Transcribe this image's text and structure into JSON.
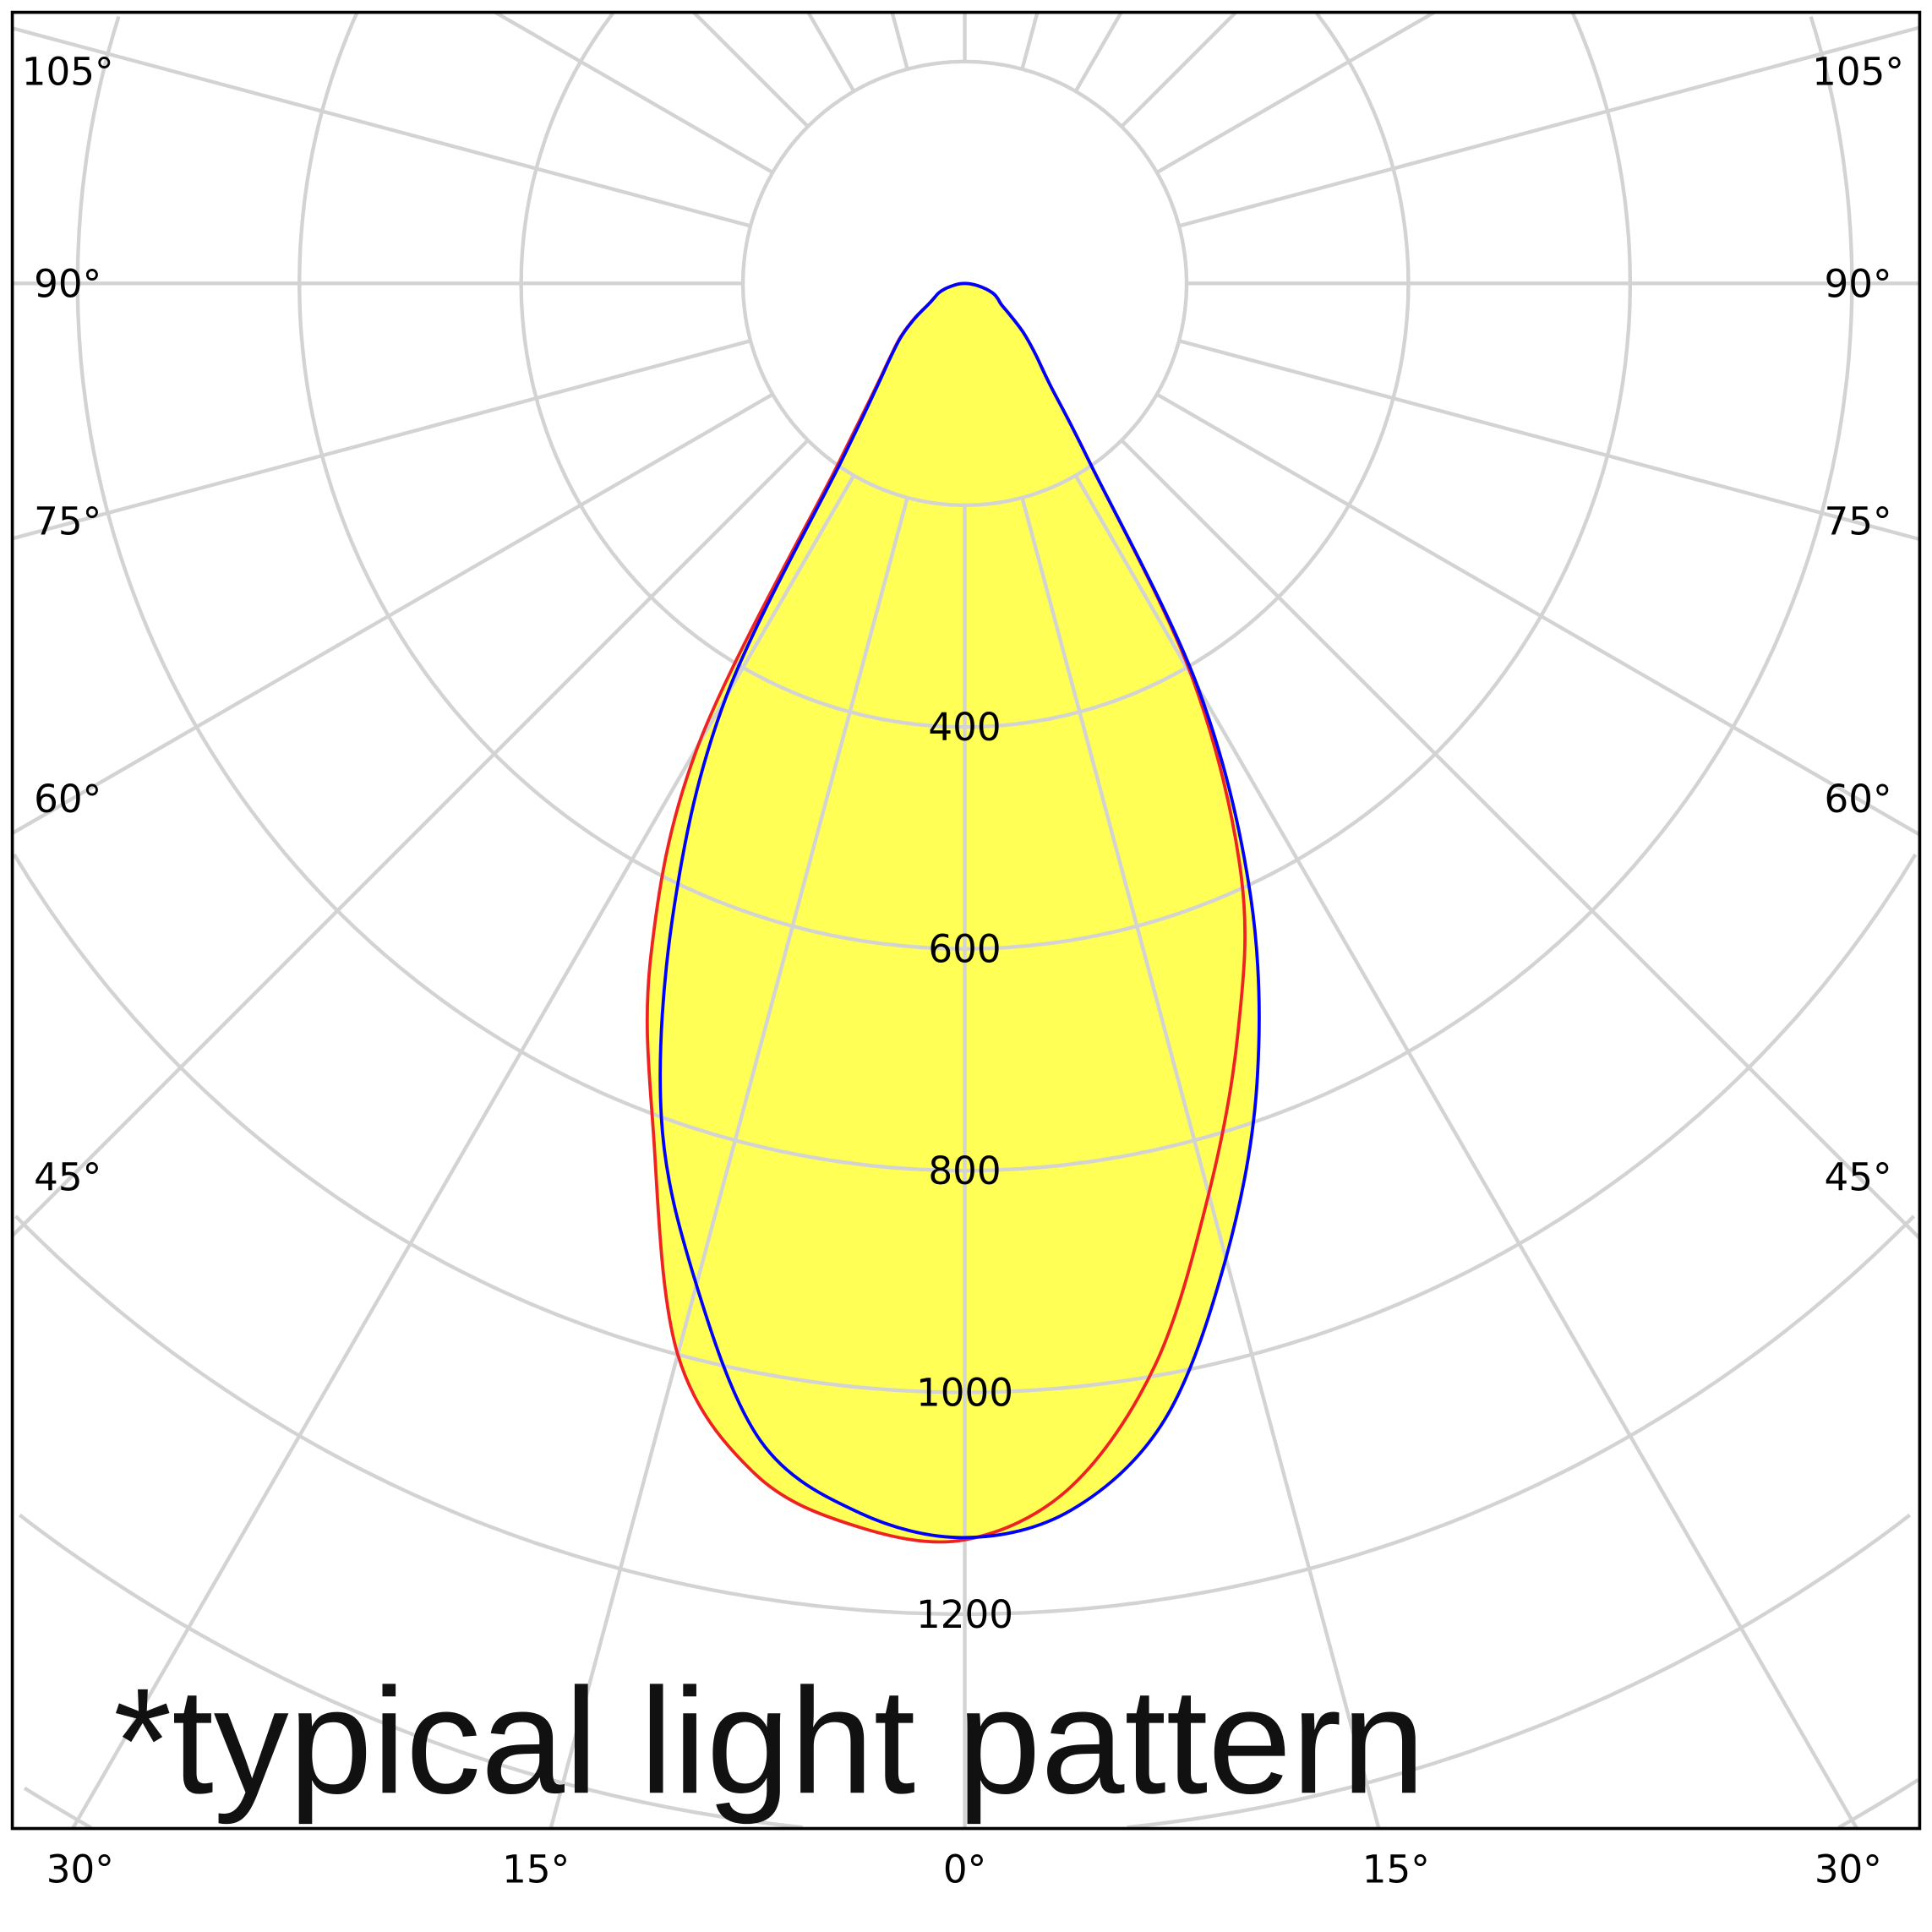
{
  "chart_data": {
    "type": "polar-line",
    "title": "",
    "note": "*typical light pattern",
    "angles_deg": [
      -90,
      -85,
      -80,
      -75,
      -70,
      -65,
      -60,
      -55,
      -50,
      -45,
      -40,
      -35,
      -30,
      -25,
      -20,
      -15,
      -10,
      -5,
      0,
      5,
      10,
      15,
      20,
      25,
      30,
      35,
      40,
      45,
      50,
      55,
      60,
      65,
      70,
      75,
      80,
      85,
      90
    ],
    "series": [
      {
        "color": "#ee2222",
        "values": [
          0,
          5,
          12,
          20,
          28,
          33,
          38,
          50,
          69,
          90,
          120,
          195,
          410,
          590,
          720,
          850,
          990,
          1090,
          1133,
          1125,
          1090,
          1000,
          820,
          670,
          480,
          200,
          128,
          96,
          76,
          56,
          38,
          30,
          25,
          18,
          10,
          5,
          0
        ]
      },
      {
        "color": "#0000ff",
        "values": [
          0,
          5,
          12,
          20,
          28,
          33,
          38,
          50,
          69,
          90,
          120,
          195,
          420,
          610,
          770,
          910,
          1040,
          1110,
          1131,
          1112,
          1060,
          935,
          800,
          620,
          430,
          190,
          125,
          95,
          75,
          55,
          38,
          30,
          25,
          18,
          10,
          5,
          0
        ]
      }
    ],
    "fill_color": "#ffff55",
    "grid_color": "#d3d3d3",
    "radial_ticks": [
      "400",
      "600",
      "800",
      "1000",
      "1200"
    ],
    "radial_tick_values": [
      400,
      600,
      800,
      1000,
      1200
    ],
    "radial_range": [
      0,
      1400
    ],
    "angle_step_deg": 15,
    "angle_labels": {
      "left": [
        "105°",
        "90°",
        "75°",
        "60°",
        "45°",
        "30°"
      ],
      "bottom": [
        "15°",
        "0°",
        "15°"
      ],
      "right": [
        "105°",
        "90°",
        "75°",
        "60°",
        "45°",
        "30°"
      ]
    },
    "grid": true
  }
}
